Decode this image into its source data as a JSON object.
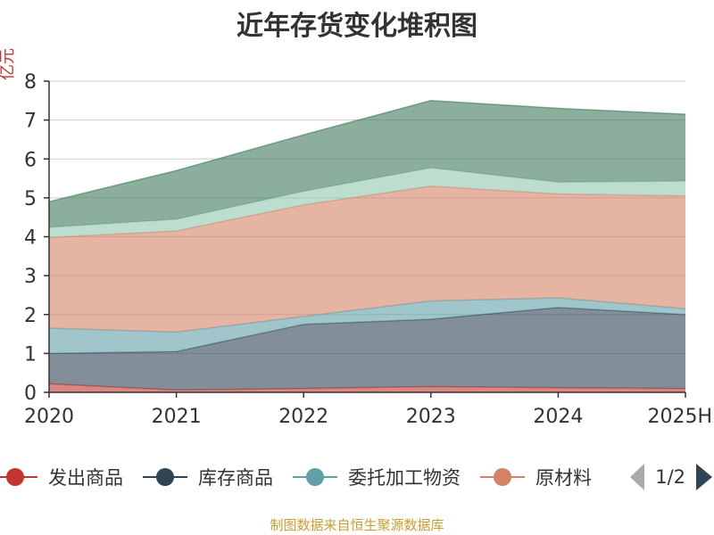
{
  "chart_data": {
    "type": "area",
    "stacked": true,
    "title": "近年存货变化堆积图",
    "xlabel": "",
    "ylabel": "亿元",
    "categories": [
      "2020",
      "2021",
      "2022",
      "2023",
      "2024",
      "2025H"
    ],
    "ylim": [
      0,
      8
    ],
    "yticks": [
      0,
      1,
      2,
      3,
      4,
      5,
      6,
      7,
      8
    ],
    "grid": true,
    "series": [
      {
        "name": "发出商品",
        "color": "#c23531",
        "values": [
          0.22,
          0.06,
          0.1,
          0.15,
          0.12,
          0.1
        ]
      },
      {
        "name": "库存商品",
        "color": "#2f4554",
        "values": [
          0.78,
          0.99,
          1.65,
          1.73,
          2.06,
          1.9
        ]
      },
      {
        "name": "委托加工物资",
        "color": "#61a0a8",
        "values": [
          0.65,
          0.5,
          0.2,
          0.47,
          0.25,
          0.15
        ]
      },
      {
        "name": "原材料",
        "color": "#d48265",
        "values": [
          2.33,
          2.6,
          2.87,
          2.95,
          2.67,
          2.9
        ]
      },
      {
        "name": "",
        "color": "#91c7ae",
        "values": [
          0.26,
          0.3,
          0.35,
          0.47,
          0.3,
          0.38
        ]
      },
      {
        "name": "",
        "color": "#3d7a5a",
        "values": [
          0.66,
          1.25,
          1.45,
          1.73,
          1.9,
          1.72
        ]
      }
    ],
    "legend_position": "bottom"
  },
  "legend": {
    "items": [
      "发出商品",
      "库存商品",
      "委托加工物资",
      "原材料"
    ],
    "page_indicator": "1/2"
  },
  "source_note": "制图数据来自恒生聚源数据库"
}
